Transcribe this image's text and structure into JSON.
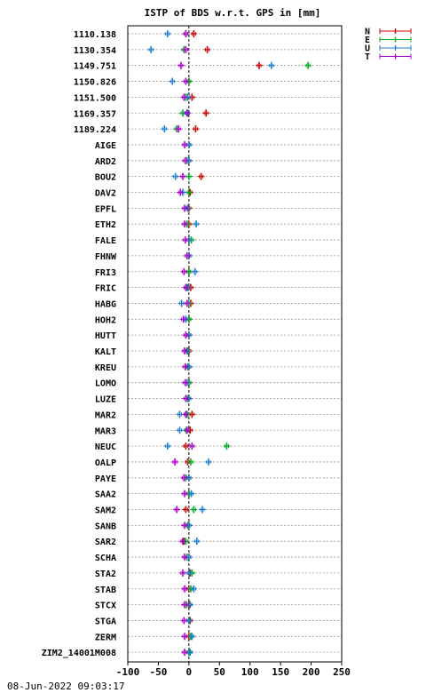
{
  "chart_data": {
    "type": "scatter",
    "title": "ISTP of BDS w.r.t. GPS in [mm]",
    "xlim": [
      -100,
      250
    ],
    "xticks": [
      "-100",
      "-50",
      "0",
      "50",
      "100",
      "150",
      "200",
      "250"
    ],
    "xtick_values": [
      -100,
      -50,
      0,
      50,
      100,
      150,
      200,
      250
    ],
    "grid": true,
    "legend_position": "top-right outside",
    "legend": [
      {
        "label": "N",
        "color": "#cc0000"
      },
      {
        "label": "E",
        "color": "#00aa22"
      },
      {
        "label": "U",
        "color": "#1f7fcf"
      },
      {
        "label": "T",
        "color": "#aa00cc"
      }
    ],
    "categories": [
      "1110.138",
      "1130.354",
      "1149.751",
      "1150.826",
      "1151.500",
      "1169.357",
      "1189.224",
      "AIGE",
      "ARD2",
      "BOU2",
      "DAV2",
      "EPFL",
      "ETH2",
      "FALE",
      "FHNW",
      "FRI3",
      "FRIC",
      "HABG",
      "HOH2",
      "HUTT",
      "KALT",
      "KREU",
      "LOMO",
      "LUZE",
      "MAR2",
      "MAR3",
      "NEUC",
      "OALP",
      "PAYE",
      "SAA2",
      "SAM2",
      "SANB",
      "SAR2",
      "SCHA",
      "STA2",
      "STAB",
      "STCX",
      "STGA",
      "ZERM",
      "ZIM2_14001M008"
    ],
    "series": [
      {
        "name": "N",
        "color": "#cc0000",
        "values": [
          8,
          30,
          115,
          0,
          5,
          28,
          11,
          0,
          0,
          20,
          2,
          0,
          0,
          0,
          0,
          0,
          3,
          3,
          0,
          0,
          0,
          0,
          0,
          0,
          5,
          2,
          -5,
          -2,
          0,
          0,
          -5,
          0,
          -8,
          0,
          2,
          0,
          0,
          2,
          0,
          0
        ]
      },
      {
        "name": "E",
        "color": "#00aa22",
        "values": [
          -5,
          -8,
          195,
          0,
          -5,
          -10,
          -20,
          0,
          -3,
          0,
          0,
          -2,
          -3,
          4,
          0,
          0,
          -3,
          0,
          0,
          0,
          -2,
          -2,
          0,
          -2,
          -3,
          -4,
          62,
          3,
          -5,
          0,
          8,
          -2,
          -5,
          -3,
          5,
          3,
          -4,
          0,
          3,
          0
        ]
      },
      {
        "name": "U",
        "color": "#1f7fcf",
        "values": [
          -35,
          -62,
          135,
          -27,
          -2,
          -2,
          -40,
          0,
          0,
          -22,
          -10,
          -2,
          12,
          0,
          0,
          10,
          -2,
          -12,
          -5,
          0,
          -3,
          0,
          -3,
          0,
          -15,
          -15,
          -35,
          32,
          0,
          4,
          22,
          0,
          13,
          0,
          0,
          8,
          2,
          0,
          5,
          2
        ]
      },
      {
        "name": "T",
        "color": "#aa00cc",
        "values": [
          -5,
          -5,
          -13,
          -5,
          -8,
          -3,
          -17,
          -7,
          -6,
          -10,
          -14,
          -7,
          -7,
          -6,
          -3,
          -8,
          -5,
          -3,
          -9,
          -5,
          -7,
          -6,
          -6,
          -5,
          -5,
          -3,
          5,
          -23,
          -8,
          -7,
          -20,
          -7,
          -10,
          -7,
          -10,
          -7,
          -7,
          -8,
          -7,
          -7
        ]
      }
    ]
  },
  "footer": {
    "timestamp": "08-Jun-2022 09:03:17"
  }
}
